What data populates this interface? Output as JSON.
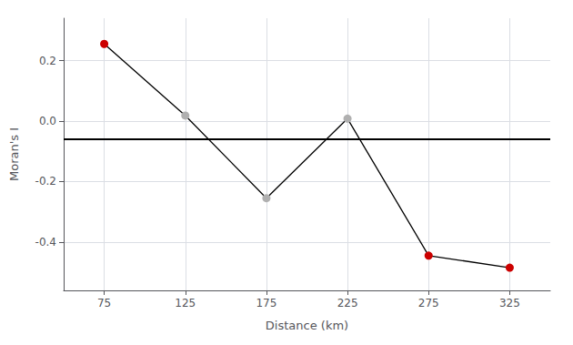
{
  "chart_data": {
    "type": "line",
    "x": [
      75,
      125,
      175,
      225,
      275,
      325
    ],
    "values": [
      0.255,
      0.018,
      -0.255,
      0.008,
      -0.445,
      -0.485
    ],
    "color": "#000000",
    "colors": [
      "#cc0000",
      "#b0b0b0",
      "#b0b0b0",
      "#b0b0b0",
      "#cc0000",
      "#cc0000"
    ],
    "hline": -0.062,
    "xlabel": "Distance (km)",
    "ylabel": "Moran's I",
    "xlim": [
      50,
      350
    ],
    "ylim": [
      -0.56,
      0.34
    ],
    "xticks": [
      75,
      125,
      175,
      225,
      275,
      325
    ],
    "yticks": [
      -0.4,
      -0.2,
      {
        "value": 0.0,
        "label": "0.0"
      },
      0.2
    ],
    "grid": true
  }
}
